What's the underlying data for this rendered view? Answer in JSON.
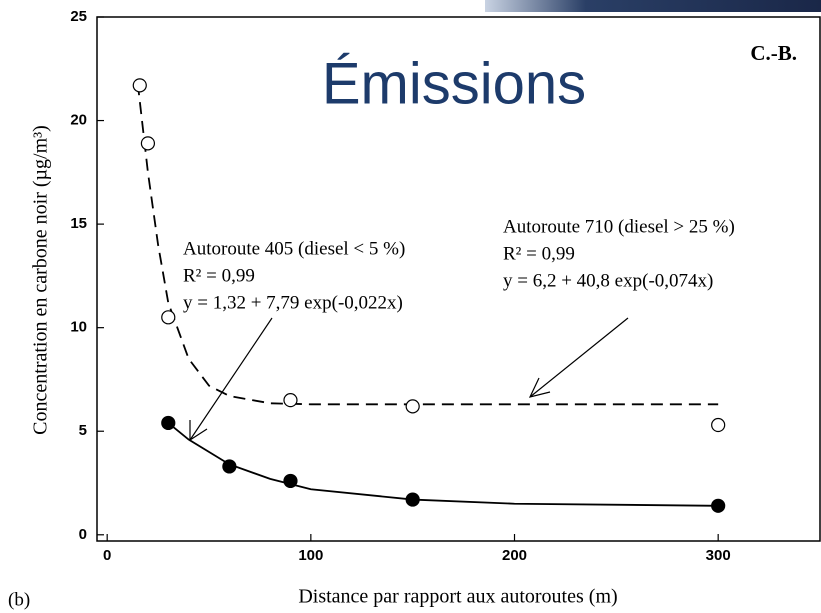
{
  "chart_data": {
    "type": "scatter",
    "title": "Émissions",
    "corner_label": "C.-B.",
    "panel_label": "(b)",
    "x_label": "Distance par rapport aux autoroutes (m)",
    "y_label": "Concentration en carbone noir (µg/m³)",
    "xlim": [
      -5,
      350
    ],
    "ylim": [
      -0.3,
      25
    ],
    "xticks": [
      0,
      100,
      200,
      300
    ],
    "yticks": [
      0,
      5,
      10,
      15,
      20,
      25
    ],
    "series": [
      {
        "marker": "open",
        "color": "#000000",
        "x": [
          16,
          20,
          30,
          90,
          150,
          300
        ],
        "values": [
          21.7,
          18.9,
          10.5,
          6.5,
          6.2,
          5.3
        ]
      },
      {
        "marker": "filled",
        "color": "#000000",
        "x": [
          30,
          60,
          90,
          150,
          300
        ],
        "values": [
          5.4,
          3.3,
          2.6,
          1.7,
          1.4
        ]
      }
    ],
    "fits": [
      {
        "style": "dashed",
        "color": "#000000",
        "x": [
          15,
          20,
          25,
          30,
          40,
          50,
          60,
          80,
          100,
          150,
          200,
          300
        ],
        "values": [
          21.8,
          17.5,
          14,
          11.2,
          8.5,
          7.2,
          6.7,
          6.35,
          6.3,
          6.3,
          6.3,
          6.3
        ]
      },
      {
        "style": "solid",
        "color": "#000000",
        "x": [
          30,
          40,
          60,
          80,
          100,
          150,
          200,
          300
        ],
        "values": [
          5.4,
          4.6,
          3.4,
          2.7,
          2.2,
          1.7,
          1.5,
          1.4
        ]
      }
    ],
    "annotations": [
      {
        "lines": [
          "Autoroute 405 (diesel < 5 %)",
          "R² = 0,99",
          "y = 1,32 + 7,79 exp(-0,022x)"
        ]
      },
      {
        "lines": [
          "Autoroute 710 (diesel > 25 %)",
          "R² = 0,99",
          "y = 6,2 + 40,8 exp(-0,074x)"
        ]
      }
    ]
  }
}
